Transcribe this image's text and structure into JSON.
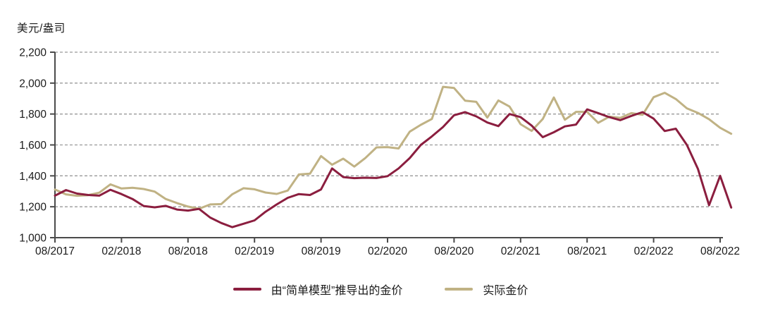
{
  "header": {
    "unit_label": "美元/盎司"
  },
  "legend": {
    "items": [
      {
        "label": "由“简单模型”推导出的金价",
        "color": "#8b1e3f"
      },
      {
        "label": "实际金价",
        "color": "#c0b284"
      }
    ]
  },
  "colors": {
    "background": "#ffffff",
    "axis": "#4a4a4a",
    "grid": "#999999",
    "text": "#1a1a1a",
    "model_line": "#8b1e3f",
    "actual_line": "#c0b284"
  },
  "chart_data": {
    "type": "line",
    "title": "",
    "ylabel": "美元/盎司",
    "xlabel": "",
    "ylim": [
      1000,
      2200
    ],
    "y_ticks": [
      1000,
      1200,
      1400,
      1600,
      1800,
      2000,
      2200
    ],
    "grid": "horizontal-dashed",
    "legend_position": "bottom",
    "x_tick_labels": [
      "08/2017",
      "02/2018",
      "08/2018",
      "02/2019",
      "08/2019",
      "02/2020",
      "08/2020",
      "02/2021",
      "08/2021",
      "02/2022",
      "08/2022"
    ],
    "x_tick_every": 6,
    "x": [
      "08/2017",
      "09/2017",
      "10/2017",
      "11/2017",
      "12/2017",
      "01/2018",
      "02/2018",
      "03/2018",
      "04/2018",
      "05/2018",
      "06/2018",
      "07/2018",
      "08/2018",
      "09/2018",
      "10/2018",
      "11/2018",
      "12/2018",
      "01/2019",
      "02/2019",
      "03/2019",
      "04/2019",
      "05/2019",
      "06/2019",
      "07/2019",
      "08/2019",
      "09/2019",
      "10/2019",
      "11/2019",
      "12/2019",
      "01/2020",
      "02/2020",
      "03/2020",
      "04/2020",
      "05/2020",
      "06/2020",
      "07/2020",
      "08/2020",
      "09/2020",
      "10/2020",
      "11/2020",
      "12/2020",
      "01/2021",
      "02/2021",
      "03/2021",
      "04/2021",
      "05/2021",
      "06/2021",
      "07/2021",
      "08/2021",
      "09/2021",
      "10/2021",
      "11/2021",
      "12/2021",
      "01/2022",
      "02/2022",
      "03/2022",
      "04/2022",
      "05/2022",
      "06/2022",
      "07/2022",
      "08/2022",
      "09/2022"
    ],
    "series": [
      {
        "name": "实际金价",
        "color": "#c0b284",
        "values": [
          1311,
          1280,
          1271,
          1275,
          1291,
          1345,
          1318,
          1323,
          1315,
          1298,
          1250,
          1224,
          1201,
          1187,
          1215,
          1217,
          1281,
          1320,
          1313,
          1292,
          1283,
          1305,
          1409,
          1414,
          1528,
          1472,
          1511,
          1460,
          1515,
          1584,
          1586,
          1577,
          1686,
          1730,
          1768,
          1976,
          1968,
          1886,
          1879,
          1777,
          1888,
          1848,
          1734,
          1691,
          1768,
          1907,
          1763,
          1814,
          1814,
          1743,
          1783,
          1775,
          1806,
          1795,
          1909,
          1937,
          1897,
          1837,
          1807,
          1766,
          1711,
          1672
        ]
      },
      {
        "name": "由“简单模型”推导出的金价",
        "color": "#8b1e3f",
        "values": [
          1272,
          1308,
          1285,
          1276,
          1272,
          1310,
          1282,
          1250,
          1205,
          1196,
          1206,
          1182,
          1175,
          1186,
          1130,
          1095,
          1068,
          1090,
          1112,
          1168,
          1215,
          1258,
          1282,
          1276,
          1312,
          1448,
          1392,
          1385,
          1388,
          1386,
          1398,
          1448,
          1515,
          1600,
          1655,
          1716,
          1792,
          1812,
          1785,
          1745,
          1722,
          1800,
          1780,
          1725,
          1650,
          1682,
          1720,
          1732,
          1830,
          1806,
          1780,
          1760,
          1788,
          1812,
          1770,
          1690,
          1705,
          1600,
          1445,
          1210,
          1400,
          1195
        ]
      }
    ]
  }
}
